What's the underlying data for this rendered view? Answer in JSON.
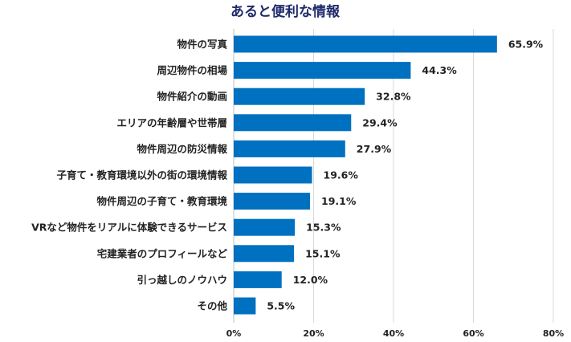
{
  "chart_data": {
    "type": "bar",
    "orientation": "horizontal",
    "title": "あると便利な情報",
    "categories": [
      "物件の写真",
      "周辺物件の相場",
      "物件紹介の動画",
      "エリアの年齢層や世帯層",
      "物件周辺の防災情報",
      "子育て・教育環境以外の街の環境情報",
      "物件周辺の子育て・教育環境",
      "VRなど物件をリアルに体験できるサービス",
      "宅建業者のプロフィールなど",
      "引っ越しのノウハウ",
      "その他"
    ],
    "values": [
      65.9,
      44.3,
      32.8,
      29.4,
      27.9,
      19.6,
      19.1,
      15.3,
      15.1,
      12.0,
      5.5
    ],
    "value_labels": [
      "65.9%",
      "44.3%",
      "32.8%",
      "29.4%",
      "27.9%",
      "19.6%",
      "19.1%",
      "15.3%",
      "15.1%",
      "12.0%",
      "5.5%"
    ],
    "xlim": [
      0,
      80
    ],
    "xticks": [
      0,
      20,
      40,
      60,
      80
    ],
    "xtick_labels": [
      "0%",
      "20%",
      "40%",
      "60%",
      "80%"
    ],
    "bar_color": "#0070c0",
    "title_color": "#1f2a6b",
    "grid": true,
    "legend": "none"
  }
}
